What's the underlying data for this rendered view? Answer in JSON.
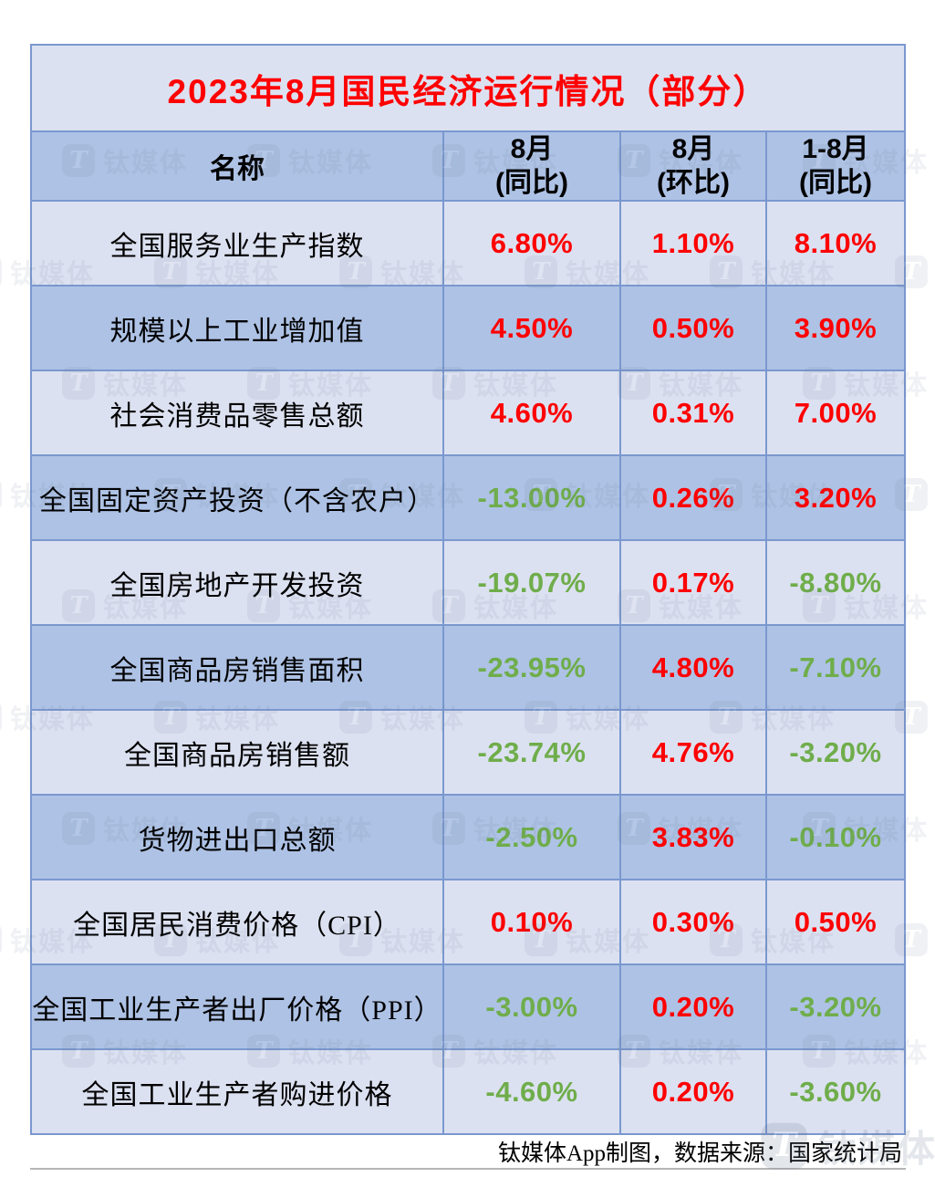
{
  "title": "2023年8月国民经济运行情况（部分）",
  "table": {
    "name_header": "名称",
    "columns": [
      {
        "line1": "8月",
        "line2": "(同比)"
      },
      {
        "line1": "8月",
        "line2": "(环比)"
      },
      {
        "line1": "1-8月",
        "line2": "(同比)"
      }
    ],
    "rows": [
      {
        "name": "全国服务业生产指数",
        "values": [
          "6.80%",
          "1.10%",
          "8.10%"
        ],
        "trend": [
          "up",
          "up",
          "up"
        ]
      },
      {
        "name": "规模以上工业增加值",
        "values": [
          "4.50%",
          "0.50%",
          "3.90%"
        ],
        "trend": [
          "up",
          "up",
          "up"
        ]
      },
      {
        "name": "社会消费品零售总额",
        "values": [
          "4.60%",
          "0.31%",
          "7.00%"
        ],
        "trend": [
          "up",
          "up",
          "up"
        ]
      },
      {
        "name": "全国固定资产投资（不含农户）",
        "values": [
          "-13.00%",
          "0.26%",
          "3.20%"
        ],
        "trend": [
          "down",
          "up",
          "up"
        ]
      },
      {
        "name": "全国房地产开发投资",
        "values": [
          "-19.07%",
          "0.17%",
          "-8.80%"
        ],
        "trend": [
          "down",
          "up",
          "down"
        ]
      },
      {
        "name": "全国商品房销售面积",
        "values": [
          "-23.95%",
          "4.80%",
          "-7.10%"
        ],
        "trend": [
          "down",
          "up",
          "down"
        ]
      },
      {
        "name": "全国商品房销售额",
        "values": [
          "-23.74%",
          "4.76%",
          "-3.20%"
        ],
        "trend": [
          "down",
          "up",
          "down"
        ]
      },
      {
        "name": "货物进出口总额",
        "values": [
          "-2.50%",
          "3.83%",
          "-0.10%"
        ],
        "trend": [
          "down",
          "up",
          "down"
        ]
      },
      {
        "name": "全国居民消费价格（CPI）",
        "values": [
          "0.10%",
          "0.30%",
          "0.50%"
        ],
        "trend": [
          "up",
          "up",
          "up"
        ]
      },
      {
        "name": "全国工业生产者出厂价格（PPI）",
        "values": [
          "-3.00%",
          "0.20%",
          "-3.20%"
        ],
        "trend": [
          "down",
          "up",
          "down"
        ]
      },
      {
        "name": "全国工业生产者购进价格",
        "values": [
          "-4.60%",
          "0.20%",
          "-3.60%"
        ],
        "trend": [
          "down",
          "up",
          "down"
        ]
      }
    ]
  },
  "footer": {
    "credit": "钛媒体App制图，数据来源：国家统计局"
  },
  "watermark": {
    "text": "钛媒体",
    "logo_glyph": "T"
  },
  "colors": {
    "positive_red": "#ff0000",
    "negative_green": "#6fad4b",
    "row_light": "#dce1f1",
    "row_dark": "#aec2e5",
    "border_blue": "#7a98cf",
    "title_red": "#ff0000"
  },
  "chart_data": {
    "type": "table",
    "title": "2023年8月国民经济运行情况（部分）",
    "columns": [
      "名称",
      "8月(同比)",
      "8月(环比)",
      "1-8月(同比)"
    ],
    "unit": "%",
    "rows": [
      [
        "全国服务业生产指数",
        6.8,
        1.1,
        8.1
      ],
      [
        "规模以上工业增加值",
        4.5,
        0.5,
        3.9
      ],
      [
        "社会消费品零售总额",
        4.6,
        0.31,
        7.0
      ],
      [
        "全国固定资产投资（不含农户）",
        -13.0,
        0.26,
        3.2
      ],
      [
        "全国房地产开发投资",
        -19.07,
        0.17,
        -8.8
      ],
      [
        "全国商品房销售面积",
        -23.95,
        4.8,
        -7.1
      ],
      [
        "全国商品房销售额",
        -23.74,
        4.76,
        -3.2
      ],
      [
        "货物进出口总额",
        -2.5,
        3.83,
        -0.1
      ],
      [
        "全国居民消费价格（CPI）",
        0.1,
        0.3,
        0.5
      ],
      [
        "全国工业生产者出厂价格（PPI）",
        -3.0,
        0.2,
        -3.2
      ],
      [
        "全国工业生产者购进价格",
        -4.6,
        0.2,
        -3.6
      ]
    ],
    "value_color_rule": "positive values red, negative values green",
    "source_note": "钛媒体App制图，数据来源：国家统计局"
  }
}
